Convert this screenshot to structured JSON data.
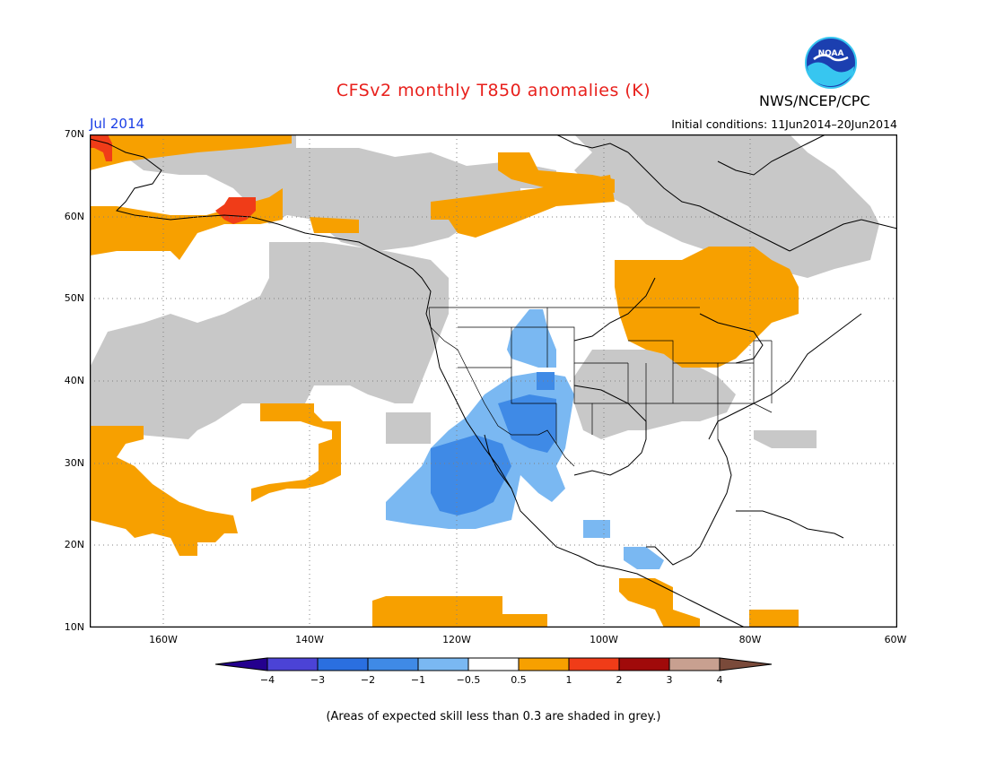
{
  "header": {
    "title": "CFSv2 monthly T850 anomalies (K)",
    "agency": "NWS/NCEP/CPC",
    "logo_text": "NOAA",
    "month": "Jul 2014",
    "initial_conditions": "Initial conditions: 11Jun2014–20Jun2014"
  },
  "map": {
    "lat_labels": [
      "70N",
      "60N",
      "50N",
      "40N",
      "30N",
      "20N",
      "10N"
    ],
    "lon_labels": [
      "160W",
      "140W",
      "120W",
      "100W",
      "80W",
      "60W"
    ],
    "extent": {
      "lon_min": -171,
      "lon_max": -60,
      "lat_min": 10,
      "lat_max": 70
    },
    "colors": {
      "skill_grey": "#c8c8c8",
      "warm_0p5_1": "#f7a000",
      "warm_1_2": "#f03c18",
      "cool_m1_m0p5": "#7ab8f2",
      "cool_m2_m1": "#3f8ae6",
      "coast": "#000000",
      "grid": "#808080"
    }
  },
  "colorbar": {
    "labels": [
      "−4",
      "−3",
      "−2",
      "−1",
      "−0.5",
      "0.5",
      "1",
      "2",
      "3",
      "4"
    ],
    "colors": [
      "#24008e",
      "#4b43d6",
      "#2a6fe0",
      "#3f8ae6",
      "#7ab8f2",
      "#ffffff",
      "#f7a000",
      "#f03c18",
      "#a00a0a",
      "#c8a090",
      "#7a4a3a"
    ]
  },
  "footnote": "(Areas of expected skill less than 0.3 are shaded in grey.)"
}
